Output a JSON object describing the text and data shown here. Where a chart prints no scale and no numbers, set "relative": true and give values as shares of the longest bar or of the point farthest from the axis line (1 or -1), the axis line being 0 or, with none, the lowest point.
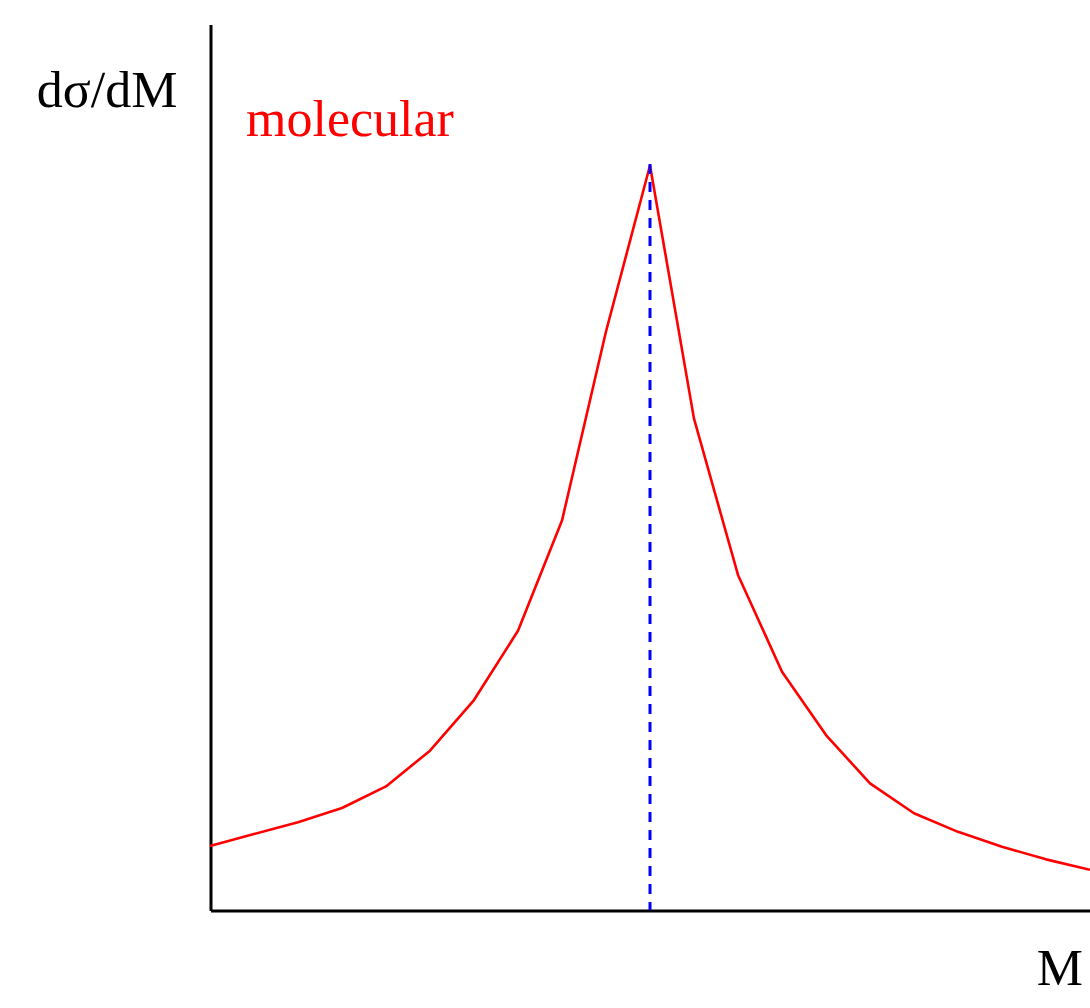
{
  "chart_data": {
    "type": "line",
    "relative": true,
    "xlabel": "M",
    "ylabel": "dσ/dM",
    "categories": [
      null,
      null,
      null,
      null,
      null,
      null,
      null,
      null,
      null,
      null,
      null,
      null,
      null,
      null,
      null,
      null,
      null,
      null,
      null,
      null,
      null
    ],
    "series": [
      {
        "name": "molecular",
        "color": "#ff0000",
        "values": [
          0.086,
          0.102,
          0.118,
          0.137,
          0.166,
          0.214,
          0.282,
          0.375,
          0.523,
          0.777,
          1,
          0.66,
          0.45,
          0.32,
          0.235,
          0.17,
          0.13,
          0.105,
          0.085,
          0.068,
          0.054
        ]
      }
    ],
    "legend": false,
    "grid": false,
    "tick_labels": false,
    "line_style": "solid"
  }
}
